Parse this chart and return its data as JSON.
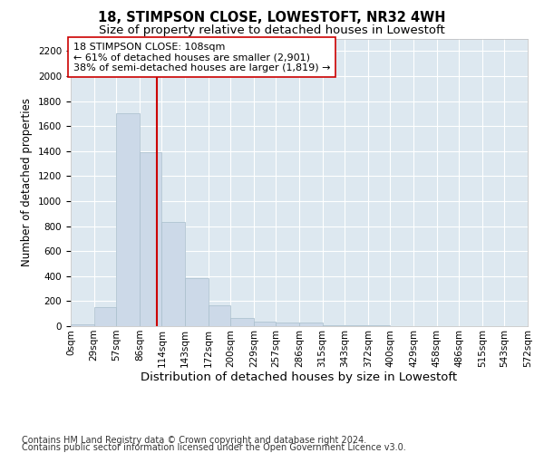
{
  "title": "18, STIMPSON CLOSE, LOWESTOFT, NR32 4WH",
  "subtitle": "Size of property relative to detached houses in Lowestoft",
  "xlabel": "Distribution of detached houses by size in Lowestoft",
  "ylabel": "Number of detached properties",
  "bin_edges": [
    0,
    29,
    57,
    86,
    114,
    143,
    172,
    200,
    229,
    257,
    286,
    315,
    343,
    372,
    400,
    429,
    458,
    486,
    515,
    543,
    572
  ],
  "bar_heights": [
    18,
    155,
    1700,
    1390,
    830,
    385,
    165,
    65,
    38,
    30,
    30,
    5,
    5,
    5,
    0,
    0,
    0,
    0,
    0,
    0
  ],
  "bar_color": "#ccd9e8",
  "bar_edgecolor": "#a8becc",
  "property_size": 108,
  "vline_color": "#cc0000",
  "annotation_text": "18 STIMPSON CLOSE: 108sqm\n← 61% of detached houses are smaller (2,901)\n38% of semi-detached houses are larger (1,819) →",
  "annotation_box_facecolor": "#ffffff",
  "annotation_box_edgecolor": "#cc0000",
  "ylim": [
    0,
    2300
  ],
  "yticks": [
    0,
    200,
    400,
    600,
    800,
    1000,
    1200,
    1400,
    1600,
    1800,
    2000,
    2200
  ],
  "fig_facecolor": "#ffffff",
  "plot_facecolor": "#dde8f0",
  "grid_color": "#ffffff",
  "title_fontsize": 10.5,
  "subtitle_fontsize": 9.5,
  "xlabel_fontsize": 9.5,
  "ylabel_fontsize": 8.5,
  "tick_fontsize": 7.5,
  "annotation_fontsize": 8,
  "footer_fontsize": 7,
  "footer_line1": "Contains HM Land Registry data © Crown copyright and database right 2024.",
  "footer_line2": "Contains public sector information licensed under the Open Government Licence v3.0."
}
